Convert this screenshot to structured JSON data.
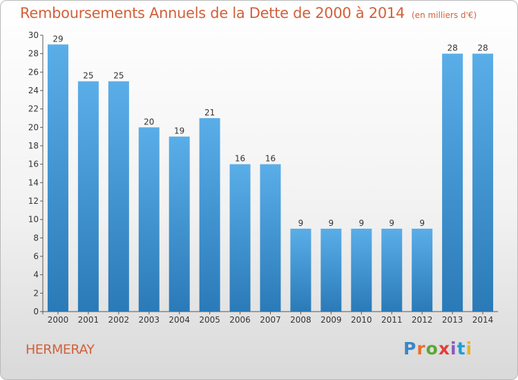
{
  "header": {
    "title": "Remboursements Annuels de la Dette de 2000 à 2014",
    "unit": "(en milliers d'€)"
  },
  "footer": {
    "commune": "HERMERAY",
    "logo": "Proxiti"
  },
  "colors": {
    "title": "#d2603a",
    "bar_top": "#5aaee8",
    "bar_bottom": "#2a7ab8"
  },
  "chart_data": {
    "type": "bar",
    "title": "Remboursements Annuels de la Dette de 2000 à 2014",
    "xlabel": "",
    "ylabel": "",
    "categories": [
      "2000",
      "2001",
      "2002",
      "2003",
      "2004",
      "2005",
      "2006",
      "2007",
      "2008",
      "2009",
      "2010",
      "2011",
      "2012",
      "2013",
      "2014"
    ],
    "values": [
      29,
      25,
      25,
      20,
      19,
      21,
      16,
      16,
      9,
      9,
      9,
      9,
      9,
      28,
      28
    ],
    "ylim": [
      0,
      30
    ],
    "yticks": [
      0,
      2,
      4,
      6,
      8,
      10,
      12,
      14,
      16,
      18,
      20,
      22,
      24,
      26,
      28,
      30
    ],
    "grid": false,
    "legend": "none"
  }
}
